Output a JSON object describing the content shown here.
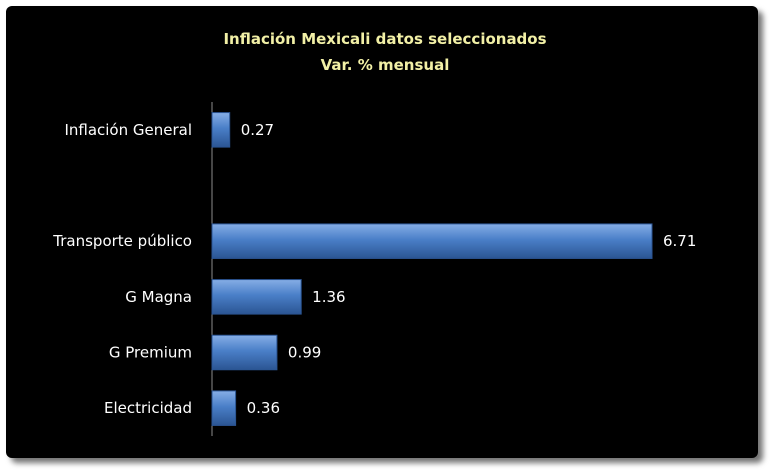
{
  "colors": {
    "background": "#000000",
    "title": "#f2f0a6",
    "text": "#ffffff",
    "bar": "#4a7fc8",
    "bar_dark": "#2b5593",
    "bar_light": "#86aee6",
    "axis": "#8c8c8c"
  },
  "chart_data": {
    "type": "bar",
    "orientation": "horizontal",
    "title": "Inflación Mexicali datos seleccionados",
    "subtitle": "Var. % mensual",
    "categories": [
      "Inflación General",
      "",
      "Transporte público",
      "G Magna",
      "G Premium",
      "Electricidad"
    ],
    "values": [
      0.27,
      null,
      6.71,
      1.36,
      0.99,
      0.36
    ],
    "data_labels": [
      "0.27",
      "",
      "6.71",
      "1.36",
      "0.99",
      "0.36"
    ],
    "xlim": [
      0,
      7.3
    ],
    "grid": false,
    "legend": "none"
  }
}
